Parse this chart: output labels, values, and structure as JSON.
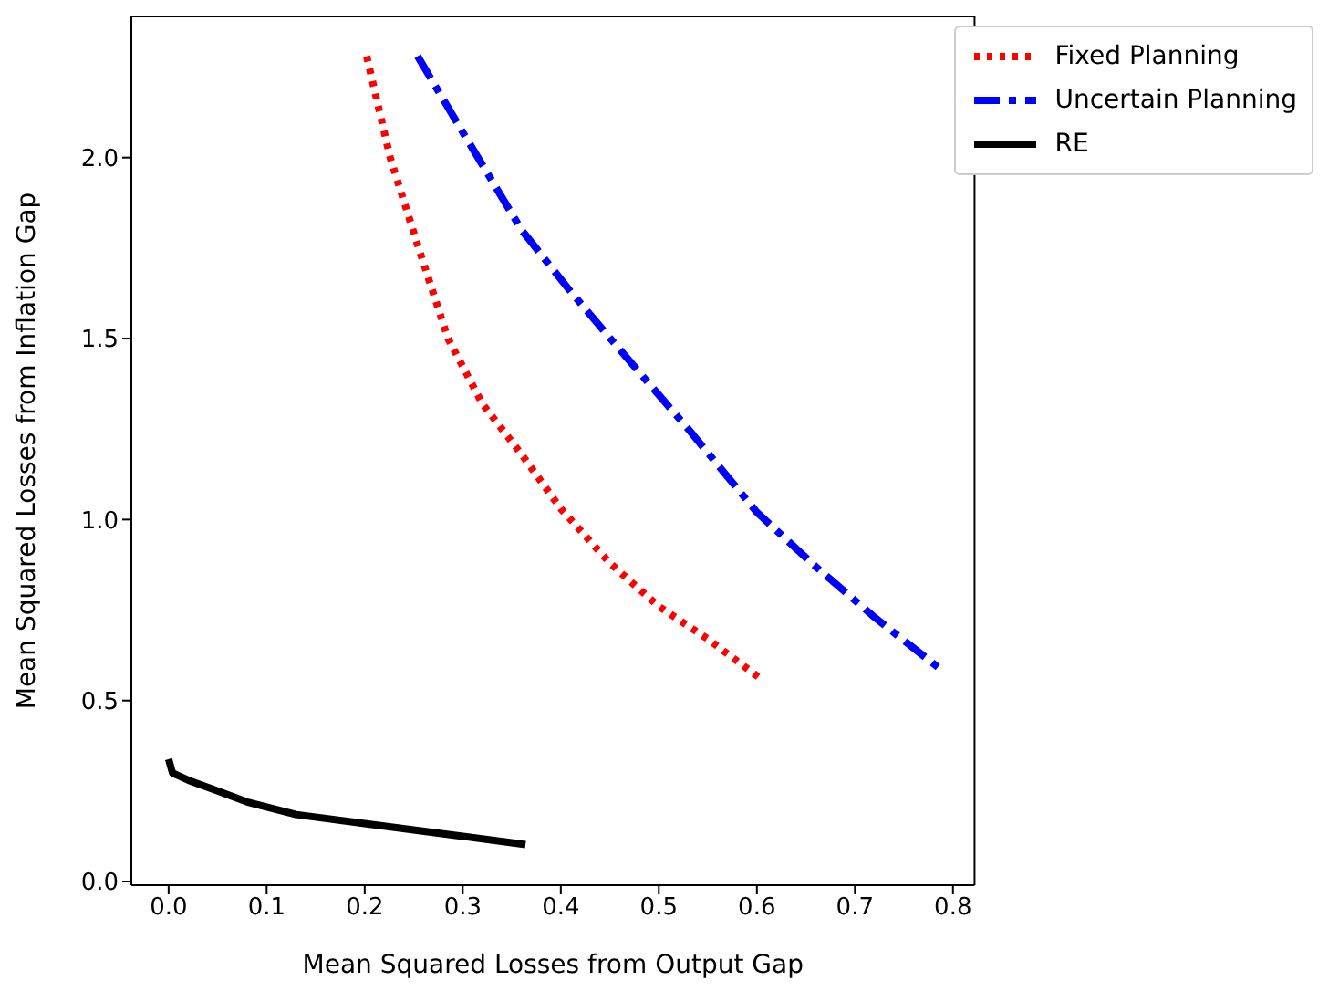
{
  "chart_data": {
    "type": "line",
    "xlabel": "Mean Squared Losses from Output Gap",
    "ylabel": "Mean Squared Losses from Inflation Gap",
    "xlim": [
      -0.038,
      0.822
    ],
    "ylim": [
      -0.01,
      2.39
    ],
    "xticks": [
      {
        "value": 0,
        "label": "0.0"
      },
      {
        "value": 0.1,
        "label": "0.1"
      },
      {
        "value": 0.2,
        "label": "0.2"
      },
      {
        "value": 0.3,
        "label": "0.3"
      },
      {
        "value": 0.4,
        "label": "0.4"
      },
      {
        "value": 0.5,
        "label": "0.5"
      },
      {
        "value": 0.6,
        "label": "0.6"
      },
      {
        "value": 0.7,
        "label": "0.7"
      },
      {
        "value": 0.8,
        "label": "0.8"
      }
    ],
    "yticks": [
      {
        "value": 0,
        "label": "0.0"
      },
      {
        "value": 0.5,
        "label": "0.5"
      },
      {
        "value": 1,
        "label": "1.0"
      },
      {
        "value": 1.5,
        "label": "1.5"
      },
      {
        "value": 2,
        "label": "2.0"
      }
    ],
    "grid": false,
    "legend": "top right",
    "marker": "none",
    "series": [
      {
        "name": "Fixed Planning",
        "color": "#ff0000",
        "line_style": "dotted",
        "x": [
          0.202,
          0.226,
          0.255,
          0.285,
          0.32,
          0.36,
          0.4,
          0.45,
          0.5,
          0.55,
          0.604
        ],
        "values": [
          2.28,
          2.0,
          1.75,
          1.5,
          1.32,
          1.18,
          1.03,
          0.88,
          0.76,
          0.67,
          0.56
        ]
      },
      {
        "name": "Uncertain Planning",
        "color": "#0000ff",
        "line_style": "dashdot",
        "x": [
          0.254,
          0.3,
          0.36,
          0.41,
          0.46,
          0.53,
          0.6,
          0.66,
          0.72,
          0.787
        ],
        "values": [
          2.28,
          2.07,
          1.8,
          1.63,
          1.47,
          1.25,
          1.02,
          0.87,
          0.73,
          0.587
        ]
      },
      {
        "name": "RE",
        "color": "#000000",
        "line_style": "solid",
        "x": [
          0.0,
          0.004,
          0.02,
          0.05,
          0.08,
          0.13,
          0.2,
          0.3,
          0.364
        ],
        "values": [
          0.338,
          0.3,
          0.28,
          0.25,
          0.22,
          0.185,
          0.16,
          0.125,
          0.102
        ]
      }
    ]
  }
}
